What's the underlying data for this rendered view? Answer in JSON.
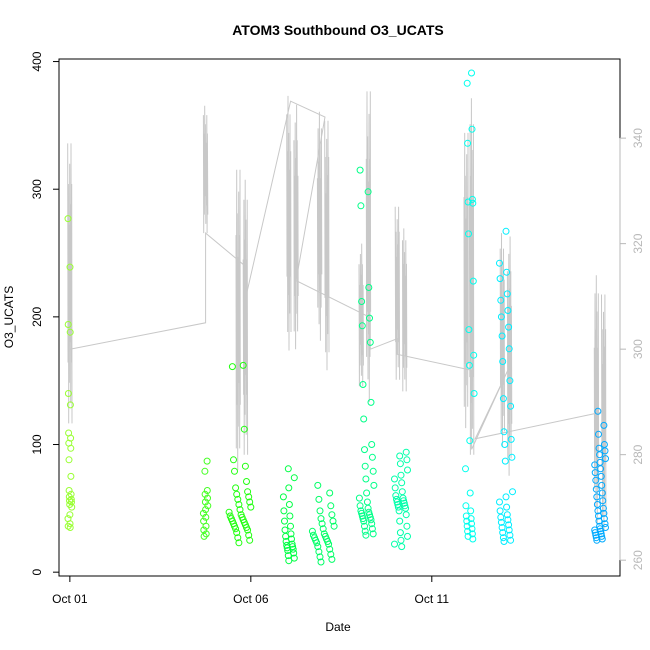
{
  "chart_data": {
    "type": "scatter",
    "title": "ATOM3 Southbound O3_UCATS",
    "xlabel": "Date",
    "ylabel": "O3_UCATS",
    "x_ticks": [
      "Oct 01",
      "Oct 06",
      "Oct 11"
    ],
    "y_left_ticks": [
      "0",
      "100",
      "200",
      "300",
      "400"
    ],
    "y_right_ticks": [
      "260",
      "280",
      "300",
      "320",
      "340"
    ],
    "xlim_days": [
      -0.3,
      15.2
    ],
    "ylim_left": [
      -3,
      402
    ],
    "ylim_right": [
      257,
      355
    ],
    "grid": false,
    "legend": "none",
    "colors": {
      "secondary_line": "#c8c8c8",
      "right_axis": "#b8b8b8",
      "frame": "#000000"
    },
    "point_groups": [
      {
        "day": 0.0,
        "spread": 0.05,
        "color": "#99ff33",
        "values": [
          277,
          239,
          194,
          188,
          140,
          131,
          109,
          105,
          101,
          97,
          88,
          75,
          64,
          61,
          59,
          57,
          56,
          55,
          53,
          51,
          45,
          42,
          38,
          36,
          35
        ]
      },
      {
        "day": 3.75,
        "spread": 0.06,
        "color": "#44ff22",
        "values": [
          87,
          79,
          64,
          61,
          58,
          55,
          52,
          49,
          46,
          43,
          40,
          36,
          33,
          30,
          28
        ]
      },
      {
        "day": 4.7,
        "spread": 0.3,
        "color": "#22ff11",
        "values": [
          162,
          161,
          112,
          88,
          83,
          79,
          71,
          66,
          63,
          61,
          59,
          57,
          55,
          53,
          51,
          49,
          47,
          45,
          44,
          43,
          42,
          41,
          40,
          39,
          38,
          37,
          36,
          35,
          34,
          33,
          31,
          29,
          27,
          25,
          23
        ]
      },
      {
        "day": 6.05,
        "spread": 0.15,
        "color": "#00ff44",
        "values": [
          81,
          74,
          66,
          59,
          53,
          48,
          44,
          40,
          36,
          33,
          30,
          28,
          26,
          24,
          22,
          21,
          20,
          19,
          18,
          17,
          15,
          13,
          11,
          9
        ]
      },
      {
        "day": 7.0,
        "spread": 0.3,
        "color": "#00ff66",
        "values": [
          68,
          62,
          57,
          52,
          48,
          45,
          42,
          40,
          38,
          36,
          34,
          32,
          30,
          29,
          28,
          27,
          26,
          25,
          24,
          23,
          22,
          20,
          18,
          16,
          14,
          12,
          10,
          8
        ]
      },
      {
        "day": 8.2,
        "spread": 0.2,
        "color": "#00ff88",
        "values": [
          315,
          298,
          287,
          223,
          212,
          199,
          193,
          180,
          147,
          133,
          120,
          100,
          96,
          90,
          83,
          79,
          73,
          68,
          62,
          58,
          55,
          52,
          50,
          48,
          47,
          46,
          45,
          44,
          43,
          42,
          41,
          40,
          38,
          36,
          34,
          32,
          30,
          29
        ]
      },
      {
        "day": 9.15,
        "spread": 0.18,
        "color": "#00ffaa",
        "values": [
          94,
          91,
          88,
          85,
          80,
          76,
          73,
          70,
          66,
          63,
          60,
          58,
          57,
          56,
          55,
          54,
          53,
          52,
          51,
          50,
          48,
          45,
          40,
          36,
          31,
          28,
          25,
          22,
          20
        ]
      },
      {
        "day": 11.05,
        "spread": 0.12,
        "color": "#00ffee",
        "values": [
          391,
          383,
          347,
          336,
          292,
          290,
          289,
          265,
          228,
          190,
          170,
          162,
          140,
          103,
          81,
          62,
          52,
          48,
          44,
          42,
          40,
          38,
          36,
          34,
          32,
          30,
          28,
          26
        ]
      },
      {
        "day": 12.05,
        "spread": 0.18,
        "color": "#00eeff",
        "values": [
          267,
          242,
          235,
          230,
          218,
          213,
          205,
          200,
          192,
          185,
          175,
          165,
          150,
          136,
          130,
          110,
          104,
          100,
          90,
          87,
          63,
          59,
          55,
          51,
          48,
          45,
          43,
          41,
          39,
          37,
          35,
          33,
          31,
          29,
          27,
          25,
          24
        ]
      },
      {
        "day": 14.65,
        "spread": 0.15,
        "color": "#00aaff",
        "values": [
          126,
          115,
          108,
          100,
          97,
          95,
          92,
          89,
          86,
          84,
          81,
          78,
          75,
          72,
          68,
          65,
          62,
          59,
          56,
          53,
          50,
          48,
          46,
          44,
          42,
          40,
          38,
          36,
          35,
          34,
          33,
          32,
          31,
          30,
          29,
          28,
          27,
          26,
          25
        ]
      }
    ],
    "secondary_series": [
      {
        "day": 0.0,
        "min": 284,
        "max": 339
      },
      {
        "day": 3.75,
        "min": 322,
        "max": 347
      },
      {
        "day": 4.65,
        "min": 275,
        "max": 334
      },
      {
        "day": 4.85,
        "min": 280,
        "max": 334
      },
      {
        "day": 6.05,
        "min": 298,
        "max": 348
      },
      {
        "day": 6.25,
        "min": 300,
        "max": 348
      },
      {
        "day": 6.9,
        "min": 300,
        "max": 345
      },
      {
        "day": 7.1,
        "min": 296,
        "max": 345
      },
      {
        "day": 8.05,
        "min": 292,
        "max": 320
      },
      {
        "day": 8.25,
        "min": 290,
        "max": 351
      },
      {
        "day": 9.05,
        "min": 293,
        "max": 327
      },
      {
        "day": 9.25,
        "min": 292,
        "max": 324
      },
      {
        "day": 10.95,
        "min": 283,
        "max": 341
      },
      {
        "day": 11.1,
        "min": 280,
        "max": 350
      },
      {
        "day": 11.95,
        "min": 280,
        "max": 322
      },
      {
        "day": 12.15,
        "min": 276,
        "max": 323
      },
      {
        "day": 14.55,
        "min": 265,
        "max": 314
      },
      {
        "day": 14.75,
        "min": 265,
        "max": 312
      }
    ],
    "secondary_path": [
      [
        0.0,
        300
      ],
      [
        3.75,
        305
      ],
      [
        3.75,
        322
      ],
      [
        4.8,
        316
      ],
      [
        4.8,
        308
      ],
      [
        6.1,
        347
      ],
      [
        7.05,
        344
      ],
      [
        6.25,
        313
      ],
      [
        8.3,
        306
      ],
      [
        8.3,
        300
      ],
      [
        9.05,
        302
      ],
      [
        9.05,
        299
      ],
      [
        11.1,
        296
      ],
      [
        11.1,
        281
      ],
      [
        12.1,
        296
      ],
      [
        11.2,
        283
      ],
      [
        14.65,
        288
      ]
    ]
  }
}
